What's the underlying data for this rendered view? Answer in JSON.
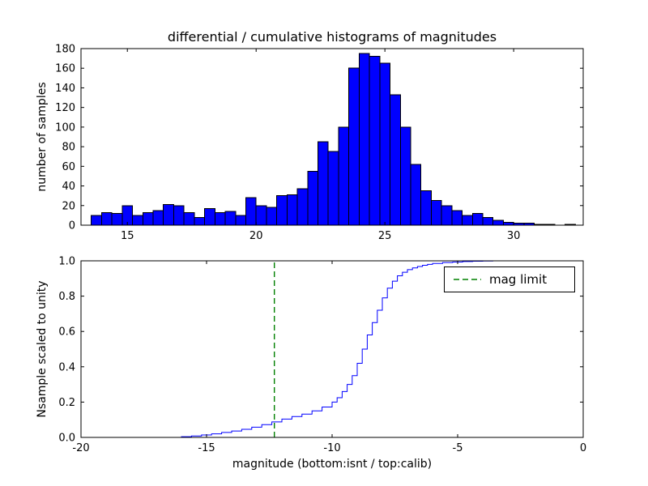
{
  "figure": {
    "title": "differential / cumulative histograms of magnitudes",
    "background": "#ffffff"
  },
  "chart_data": [
    {
      "type": "bar",
      "role": "differential-histogram",
      "ylabel": "number of samples",
      "bar_color": "#0000ff",
      "bar_edge_color": "#000000",
      "xlim": [
        13.2,
        32.7
      ],
      "ylim": [
        0,
        180
      ],
      "xticks": [
        15,
        20,
        25,
        30
      ],
      "yticks": [
        0,
        20,
        40,
        60,
        80,
        100,
        120,
        140,
        160,
        180
      ],
      "bin_start": 13.6,
      "bin_width": 0.4,
      "counts": [
        10,
        13,
        12,
        20,
        10,
        13,
        15,
        21,
        20,
        13,
        8,
        17,
        13,
        14,
        10,
        28,
        20,
        18,
        30,
        31,
        37,
        55,
        85,
        75,
        100,
        160,
        175,
        172,
        165,
        133,
        100,
        62,
        35,
        25,
        20,
        15,
        10,
        12,
        8,
        5,
        3,
        2,
        2,
        1,
        1,
        0,
        1
      ]
    },
    {
      "type": "line",
      "role": "cumulative-histogram",
      "ylabel": "Nsample scaled to unity",
      "xlabel": "magnitude (bottom:isnt / top:calib)",
      "line_color": "#0000ff",
      "xlim": [
        -20,
        0
      ],
      "ylim": [
        0,
        1
      ],
      "xticks": [
        -20,
        -15,
        -10,
        -5,
        0
      ],
      "yticks": [
        0,
        0.2,
        0.4,
        0.6,
        0.8,
        1
      ],
      "ytick_labels": [
        "0.0",
        "0.2",
        "0.4",
        "0.6",
        "0.8",
        "1.0"
      ],
      "step_points": [
        [
          -16.4,
          0.0
        ],
        [
          -16.0,
          0.004
        ],
        [
          -15.6,
          0.008
        ],
        [
          -15.2,
          0.014
        ],
        [
          -14.8,
          0.02
        ],
        [
          -14.4,
          0.028
        ],
        [
          -14.0,
          0.036
        ],
        [
          -13.6,
          0.046
        ],
        [
          -13.2,
          0.058
        ],
        [
          -12.8,
          0.072
        ],
        [
          -12.4,
          0.088
        ],
        [
          -12.0,
          0.104
        ],
        [
          -11.6,
          0.118
        ],
        [
          -11.2,
          0.132
        ],
        [
          -10.8,
          0.15
        ],
        [
          -10.4,
          0.172
        ],
        [
          -10.0,
          0.2
        ],
        [
          -9.8,
          0.225
        ],
        [
          -9.6,
          0.26
        ],
        [
          -9.4,
          0.3
        ],
        [
          -9.2,
          0.35
        ],
        [
          -9.0,
          0.42
        ],
        [
          -8.8,
          0.5
        ],
        [
          -8.6,
          0.58
        ],
        [
          -8.4,
          0.65
        ],
        [
          -8.2,
          0.72
        ],
        [
          -8.0,
          0.79
        ],
        [
          -7.8,
          0.845
        ],
        [
          -7.6,
          0.885
        ],
        [
          -7.4,
          0.915
        ],
        [
          -7.2,
          0.935
        ],
        [
          -7.0,
          0.95
        ],
        [
          -6.8,
          0.96
        ],
        [
          -6.6,
          0.968
        ],
        [
          -6.4,
          0.975
        ],
        [
          -6.2,
          0.98
        ],
        [
          -6.0,
          0.985
        ],
        [
          -5.6,
          0.99
        ],
        [
          -5.2,
          0.993
        ],
        [
          -4.8,
          0.996
        ],
        [
          -4.4,
          0.998
        ],
        [
          -4.0,
          0.999
        ],
        [
          -3.6,
          1.0
        ],
        [
          -3.0,
          1.0
        ]
      ],
      "mag_limit": {
        "x": -12.3,
        "color": "#008000",
        "style": "dashed"
      },
      "legend": {
        "label": "mag limit",
        "position": "upper right"
      }
    }
  ]
}
